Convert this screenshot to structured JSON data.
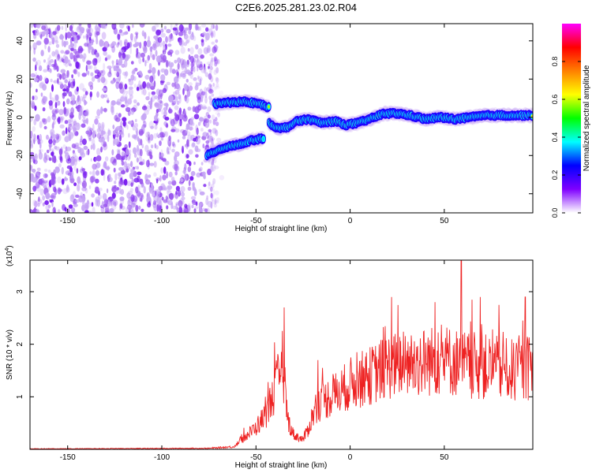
{
  "title": "C2E6.2025.281.23.02.R04",
  "chart_data": [
    {
      "id": "spectrogram",
      "type": "heatmap",
      "title": "C2E6.2025.281.23.02.R04",
      "xlabel": "Height of straight line (km)",
      "ylabel": "Frequency (Hz)",
      "xlim": [
        -170,
        97
      ],
      "ylim": [
        -50,
        49
      ],
      "xticks": [
        -150,
        -100,
        -50,
        0,
        50
      ],
      "yticks": [
        -40,
        -20,
        0,
        20,
        40
      ],
      "xtick_labels": [
        "-150",
        "-100",
        "-50",
        "0",
        "50"
      ],
      "ytick_labels": [
        "-40",
        "-20",
        "0",
        "20",
        "40"
      ],
      "colorbar": {
        "label": "Normalized spectral amplitude",
        "range": [
          0,
          1
        ],
        "ticks": [
          0.0,
          0.2,
          0.4,
          0.6,
          0.8
        ],
        "tick_labels": [
          "0.0",
          "0.2",
          "0.4",
          "0.6",
          "0.8"
        ],
        "colors": [
          "#ffffff",
          "#7f00ff",
          "#0000ff",
          "#00ffff",
          "#00ff00",
          "#ffff00",
          "#ff8000",
          "#ff0000",
          "#ff00ff"
        ]
      },
      "noise_region": {
        "x": [
          -170,
          -70
        ],
        "y": [
          -50,
          49
        ],
        "amplitude": [
          0.02,
          0.25
        ]
      },
      "ridges": [
        {
          "name": "upper-branch",
          "x": [
            -72,
            -62,
            -55,
            -48,
            -43
          ],
          "y": [
            7,
            8,
            8,
            7,
            5
          ],
          "amplitude": 0.75
        },
        {
          "name": "lower-branch",
          "x": [
            -76,
            -70,
            -64,
            -58,
            -52,
            -46
          ],
          "y": [
            -20,
            -17,
            -15,
            -14,
            -12,
            -11
          ],
          "amplitude": 0.55
        },
        {
          "name": "merged-track",
          "x": [
            -43,
            -38,
            -33,
            -28,
            -22,
            -15,
            -8,
            -2,
            4,
            10,
            18,
            25,
            32,
            40,
            48,
            56,
            64,
            72,
            80,
            88,
            97
          ],
          "y": [
            -3,
            -6,
            -5,
            -2,
            -1,
            -3,
            -2,
            -4,
            -3,
            -1,
            2,
            2,
            1,
            -1,
            0,
            -1,
            0,
            1,
            1,
            1,
            1
          ],
          "amplitude": 0.8
        }
      ]
    },
    {
      "id": "snr",
      "type": "line",
      "xlabel": "Height of straight line (km)",
      "ylabel": "SNR (10 * v/v)",
      "yscale_label": "(x10",
      "yscale_exponent": "4",
      "xlim": [
        -170,
        97
      ],
      "ylim": [
        0,
        3.6
      ],
      "xticks": [
        -150,
        -100,
        -50,
        0,
        50
      ],
      "yticks": [
        1,
        2,
        3
      ],
      "xtick_labels": [
        "-150",
        "-100",
        "-50",
        "0",
        "50"
      ],
      "ytick_labels": [
        "1",
        "2",
        "3"
      ],
      "color": "#ee2222",
      "envelope": {
        "x": [
          -170,
          -75,
          -62,
          -56,
          -50,
          -45,
          -40,
          -37,
          -35,
          -33,
          -30,
          -25,
          -22,
          -18,
          -12,
          -5,
          0,
          10,
          20,
          30,
          40,
          50,
          60,
          70,
          80,
          90,
          97
        ],
        "y": [
          0.01,
          0.02,
          0.05,
          0.25,
          0.45,
          0.7,
          1.2,
          1.6,
          1.3,
          0.6,
          0.3,
          0.2,
          0.45,
          0.9,
          1.05,
          1.2,
          1.35,
          1.5,
          1.7,
          1.75,
          1.8,
          1.85,
          1.75,
          1.7,
          1.65,
          1.6,
          1.7
        ]
      },
      "peaks": [
        {
          "x": -35,
          "y": 2.7
        },
        {
          "x": -17,
          "y": 1.7
        },
        {
          "x": 22,
          "y": 2.9
        },
        {
          "x": 45,
          "y": 2.8
        },
        {
          "x": 59,
          "y": 3.6
        },
        {
          "x": 69,
          "y": 2.9
        },
        {
          "x": 79,
          "y": 2.75
        },
        {
          "x": 93,
          "y": 2.9
        }
      ]
    }
  ]
}
